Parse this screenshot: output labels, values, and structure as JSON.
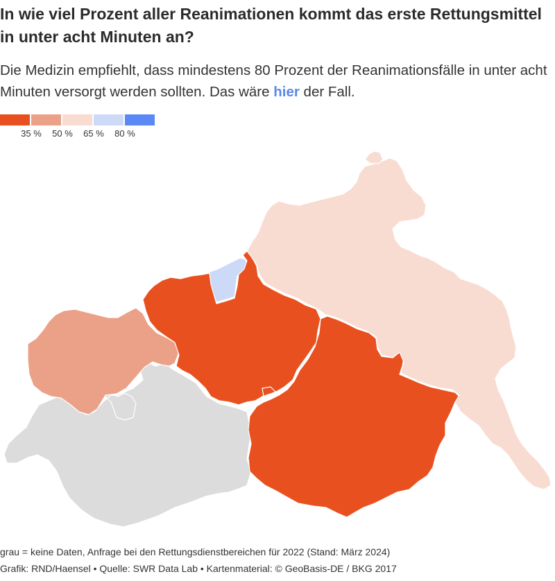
{
  "header": {
    "title": "In wie viel Prozent aller Reanimationen kommt das erste Rettungsmittel in unter acht Minuten an?",
    "subtitle_pre": "Die Medizin empfiehlt, dass mindestens 80 Prozent der Reanimationsfälle in unter acht Minuten versorgt werden sollten. Das wäre ",
    "subtitle_highlight": "hier",
    "subtitle_post": " der Fall."
  },
  "legend": {
    "colors": [
      "#e8511f",
      "#eba088",
      "#f8dcd1",
      "#ccd9f7",
      "#5a89f5"
    ],
    "ticks": [
      "35 %",
      "50 %",
      "65 %",
      "80 %"
    ]
  },
  "regions": [
    {
      "id": "west",
      "level": "50 %",
      "color": "#eba088"
    },
    {
      "id": "wismar",
      "level": "65–80 %",
      "color": "#ccd9f7"
    },
    {
      "id": "central",
      "level": "unter 35 %",
      "color": "#e8511f"
    },
    {
      "id": "southeast",
      "level": "unter 35 %",
      "color": "#e8511f"
    },
    {
      "id": "northeast",
      "level": "50–65 %",
      "color": "#f8dcd1"
    },
    {
      "id": "southwest",
      "level": "keine Daten",
      "color": "#dcdcdc"
    }
  ],
  "footer": {
    "note": "grau = keine Daten, Anfrage bei den Rettungsdienstbereichen für 2022 (Stand: März 2024)",
    "credits": "Grafik: RND/Haensel • Quelle: SWR Data Lab • Kartenmaterial: © GeoBasis-DE / BKG 2017"
  }
}
